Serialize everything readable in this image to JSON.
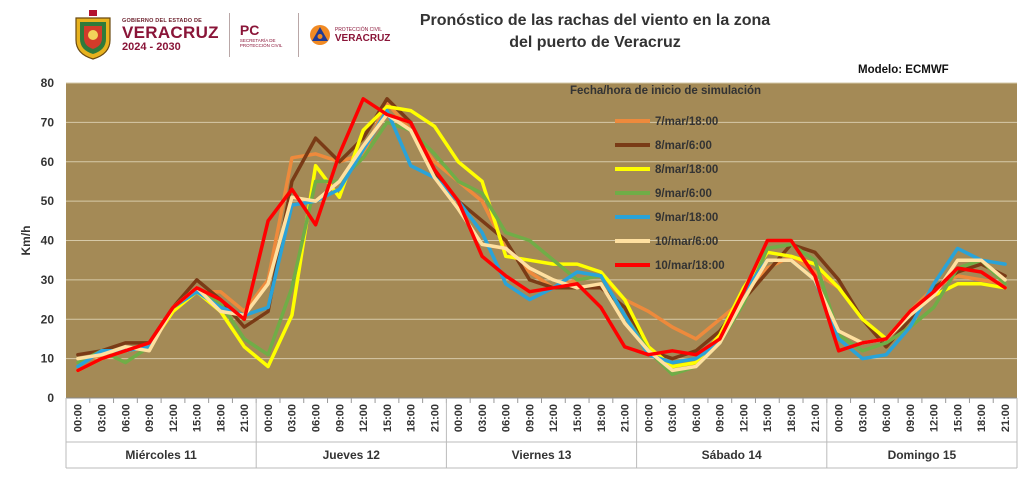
{
  "header": {
    "gov_small": "GOBIERNO DEL ESTADO DE",
    "gov_name": "VERACRUZ",
    "gov_years": "2024 - 2030",
    "pc_short": "PC",
    "pc_sub": "SECRETARÍA DE PROTECCIÓN CIVIL",
    "pcv_small": "PROTECCIÓN CIVIL",
    "pcv_name": "VERACRUZ",
    "title_line1": "Pronóstico de las rachas del viento en la zona",
    "title_line2": "del puerto de Veracruz",
    "model": "Modelo: ECMWF"
  },
  "colors": {
    "plot_bg": "#a48a56",
    "grid": "#d6c9a8"
  },
  "chart_data": {
    "type": "line",
    "ylabel": "Km/h",
    "ylim": [
      0,
      80
    ],
    "yticks": [
      0,
      10,
      20,
      30,
      40,
      50,
      60,
      70,
      80
    ],
    "legend_title": "Fecha/hora de inicio de simulación",
    "x": [
      "00:00",
      "03:00",
      "06:00",
      "09:00",
      "12:00",
      "15:00",
      "18:00",
      "21:00",
      "00:00",
      "03:00",
      "06:00",
      "09:00",
      "12:00",
      "15:00",
      "18:00",
      "21:00",
      "00:00",
      "03:00",
      "06:00",
      "09:00",
      "12:00",
      "15:00",
      "18:00",
      "21:00",
      "00:00",
      "03:00",
      "06:00",
      "09:00",
      "12:00",
      "15:00",
      "18:00",
      "21:00",
      "00:00",
      "03:00",
      "06:00",
      "09:00",
      "12:00",
      "15:00",
      "18:00",
      "21:00"
    ],
    "days": [
      "Miércoles 11",
      "Jueves 12",
      "Viernes 13",
      "Sábado 14",
      "Domingo 15"
    ],
    "series": [
      {
        "name": "7/mar/18:00",
        "color": "#ee8a3c",
        "values": [
          9,
          11,
          12,
          13,
          22,
          27,
          27,
          22,
          30,
          61,
          62,
          60,
          62,
          75,
          68,
          60,
          55,
          50,
          38,
          32,
          28,
          30,
          31,
          25,
          22,
          18,
          15,
          20,
          25,
          33,
          36,
          32,
          28,
          20,
          15,
          22,
          28,
          31,
          30,
          29
        ]
      },
      {
        "name": "8/mar/6:00",
        "color": "#7a3b16",
        "values": [
          11,
          12,
          14,
          14,
          23,
          30,
          25,
          18,
          22,
          55,
          66,
          60,
          66,
          76,
          70,
          57,
          50,
          45,
          40,
          30,
          28,
          28,
          28,
          23,
          12,
          10,
          12,
          17,
          25,
          32,
          39,
          37,
          30,
          20,
          13,
          20,
          28,
          32,
          34,
          31
        ]
      },
      {
        "name": "8/mar/18:00",
        "color": "#ffff00",
        "values": [
          7,
          10,
          12,
          13,
          22,
          27,
          22,
          13,
          8,
          21,
          59,
          51,
          68,
          74,
          73,
          69,
          60,
          55,
          36,
          35,
          34,
          34,
          32,
          25,
          13,
          8,
          9,
          16,
          28,
          37,
          36,
          34,
          28,
          20,
          15,
          22,
          26,
          29,
          29,
          28
        ]
      },
      {
        "name": "9/mar/6:00",
        "color": "#70ad47",
        "values": [
          9,
          12,
          9,
          13,
          23,
          27,
          24,
          15,
          11,
          28,
          55,
          55,
          61,
          70,
          68,
          62,
          55,
          52,
          42,
          40,
          35,
          30,
          31,
          21,
          12,
          6,
          8,
          14,
          24,
          38,
          39,
          35,
          16,
          12,
          14,
          18,
          23,
          33,
          35,
          29
        ]
      },
      {
        "name": "9/mar/18:00",
        "color": "#2aa3d8",
        "values": [
          8,
          12,
          12,
          13,
          23,
          27,
          23,
          21,
          23,
          49,
          50,
          53,
          63,
          73,
          59,
          56,
          50,
          42,
          29,
          25,
          28,
          32,
          31,
          21,
          11,
          9,
          10,
          14,
          27,
          35,
          35,
          30,
          15,
          10,
          11,
          18,
          29,
          38,
          35,
          34
        ]
      },
      {
        "name": "10/mar/6:00",
        "color": "#ffe0a0",
        "values": [
          10,
          11,
          13,
          12,
          23,
          28,
          22,
          21,
          29,
          51,
          50,
          55,
          64,
          72,
          68,
          56,
          48,
          39,
          38,
          33,
          30,
          28,
          29,
          19,
          12,
          7,
          8,
          14,
          25,
          35,
          35,
          30,
          17,
          14,
          15,
          21,
          26,
          35,
          35,
          30
        ]
      },
      {
        "name": "10/mar/18:00",
        "color": "#ff0000",
        "values": [
          7,
          10,
          12,
          14,
          23,
          28,
          25,
          20,
          45,
          53,
          44,
          62,
          76,
          72,
          70,
          58,
          50,
          36,
          31,
          27,
          28,
          29,
          23,
          13,
          11,
          12,
          11,
          15,
          27,
          40,
          40,
          31,
          12,
          14,
          15,
          22,
          27,
          33,
          32,
          28
        ]
      }
    ]
  }
}
